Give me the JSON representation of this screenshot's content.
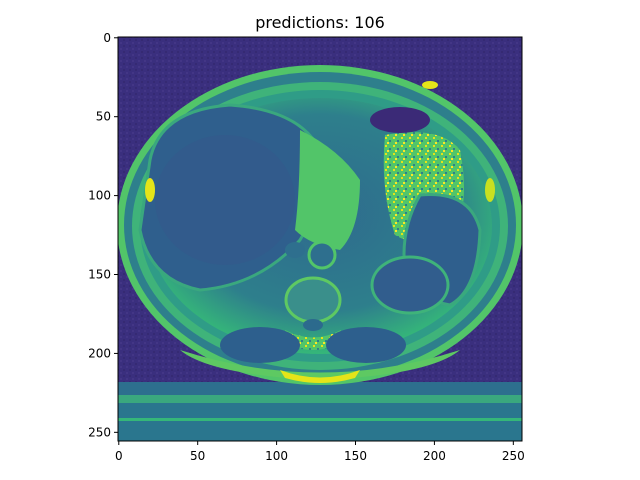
{
  "figure": {
    "title": "predictions: 106",
    "colormap": "viridis",
    "colors": {
      "background_dark": "#3b2a77",
      "tissue_teal": "#2e7f8c",
      "bright_green": "#52c569",
      "yellow": "#e5e419",
      "deep_purple": "#440154",
      "mid_blue": "#355f8d"
    },
    "image": {
      "description_icon": "ct-axial-slice-image",
      "rows": 256,
      "cols": 256
    },
    "x_axis": {
      "ticks": [
        "0",
        "50",
        "100",
        "150",
        "200",
        "250"
      ],
      "tick_values": [
        0,
        50,
        100,
        150,
        200,
        250
      ],
      "range": [
        0,
        256
      ]
    },
    "y_axis": {
      "ticks": [
        "0",
        "50",
        "100",
        "150",
        "200",
        "250"
      ],
      "tick_values": [
        0,
        50,
        100,
        150,
        200,
        250
      ],
      "range": [
        0,
        256
      ]
    }
  }
}
